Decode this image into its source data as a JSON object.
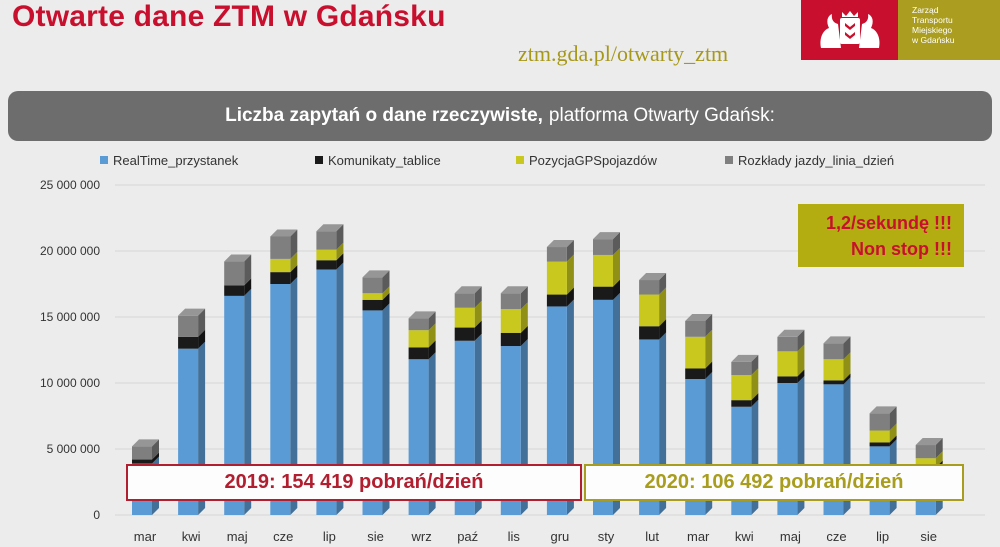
{
  "header": {
    "title": "Otwarte dane ZTM w Gdańsku",
    "url": "ztm.gda.pl/otwarty_ztm",
    "logo_lines": [
      "Zarząd",
      "Transportu",
      "Miejskiego",
      "w Gdańsku"
    ]
  },
  "banner": {
    "bold": "Liczba zapytań o dane rzeczywiste,",
    "rest": "platforma Otwarty Gdańsk:"
  },
  "callout": {
    "line1": "1,2/sekundę !!!",
    "line2": "Non stop !!!"
  },
  "year_boxes": {
    "y2019": "2019: 154 419 pobrań/dzień",
    "y2020": "2020: 106 492 pobrań/dzień"
  },
  "colors": {
    "realtime": "#5b9bd5",
    "komunikaty": "#1a1a1a",
    "gps": "#c8c81e",
    "rozklady": "#7f7f7f",
    "accent_red": "#c8102e",
    "accent_olive": "#a89d1e"
  },
  "chart_data": {
    "type": "bar",
    "stacked": true,
    "title": "",
    "xlabel": "",
    "ylabel": "",
    "ylim": [
      0,
      25000000
    ],
    "yticks": [
      0,
      5000000,
      10000000,
      15000000,
      20000000,
      25000000
    ],
    "ytick_labels": [
      "0",
      "5 000 000",
      "10 000 000",
      "15 000 000",
      "20 000 000",
      "25 000 000"
    ],
    "categories": [
      "mar",
      "kwi",
      "maj",
      "cze",
      "lip",
      "sie",
      "wrz",
      "paź",
      "lis",
      "gru",
      "sty",
      "lut",
      "mar",
      "kwi",
      "maj",
      "cze",
      "lip",
      "sie"
    ],
    "legend_position": "top",
    "grid": true,
    "series": [
      {
        "name": "RealTime_przystanek",
        "color": "#5b9bd5",
        "values": [
          3900000,
          12600000,
          16600000,
          17500000,
          18600000,
          15500000,
          11800000,
          13200000,
          12800000,
          15800000,
          16300000,
          13300000,
          10300000,
          8200000,
          10000000,
          9900000,
          5200000,
          3400000
        ]
      },
      {
        "name": "Komunikaty_tablice",
        "color": "#1a1a1a",
        "values": [
          300000,
          900000,
          800000,
          900000,
          700000,
          800000,
          900000,
          1000000,
          1000000,
          900000,
          1000000,
          1000000,
          800000,
          500000,
          500000,
          300000,
          300000,
          200000
        ]
      },
      {
        "name": "PozycjaGPSpojazdów",
        "color": "#c8c81e",
        "values": [
          0,
          0,
          0,
          1000000,
          800000,
          500000,
          1300000,
          1500000,
          1800000,
          2500000,
          2400000,
          2400000,
          2400000,
          1900000,
          1900000,
          1600000,
          900000,
          700000
        ]
      },
      {
        "name": "Rozkłady jazdy_linia_dzień",
        "color": "#7f7f7f",
        "values": [
          1000000,
          1600000,
          1800000,
          1700000,
          1400000,
          1200000,
          900000,
          1100000,
          1200000,
          1100000,
          1200000,
          1100000,
          1200000,
          1000000,
          1100000,
          1200000,
          1300000,
          1000000
        ]
      }
    ]
  }
}
